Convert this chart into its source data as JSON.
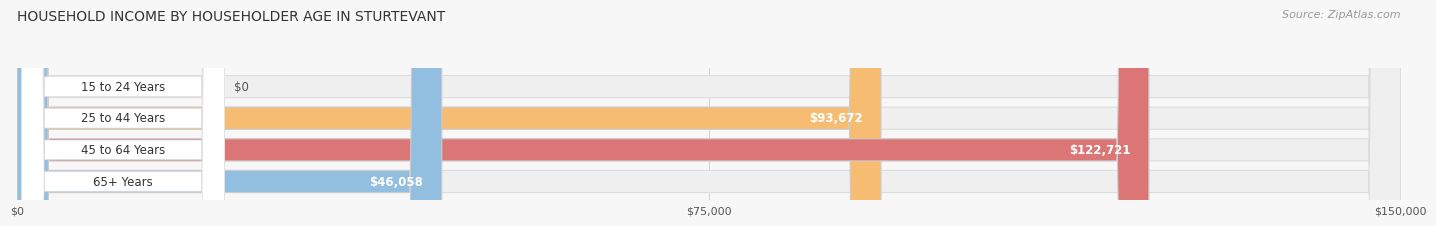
{
  "title": "HOUSEHOLD INCOME BY HOUSEHOLDER AGE IN STURTEVANT",
  "source_text": "Source: ZipAtlas.com",
  "categories": [
    "15 to 24 Years",
    "25 to 44 Years",
    "45 to 64 Years",
    "65+ Years"
  ],
  "values": [
    0,
    93672,
    122721,
    46058
  ],
  "bar_colors": [
    "#f2a0b5",
    "#f5bc72",
    "#dc7575",
    "#92bfe0"
  ],
  "bar_bg_colors": [
    "#efefef",
    "#efefef",
    "#efefef",
    "#efefef"
  ],
  "value_label_colors": [
    "#555555",
    "#ffffff",
    "#ffffff",
    "#555555"
  ],
  "xlim": [
    0,
    150000
  ],
  "xticks": [
    0,
    75000,
    150000
  ],
  "xtick_labels": [
    "$0",
    "$75,000",
    "$150,000"
  ],
  "background_color": "#f7f7f7",
  "title_fontsize": 10,
  "source_fontsize": 8,
  "label_area_color": "#ffffff"
}
